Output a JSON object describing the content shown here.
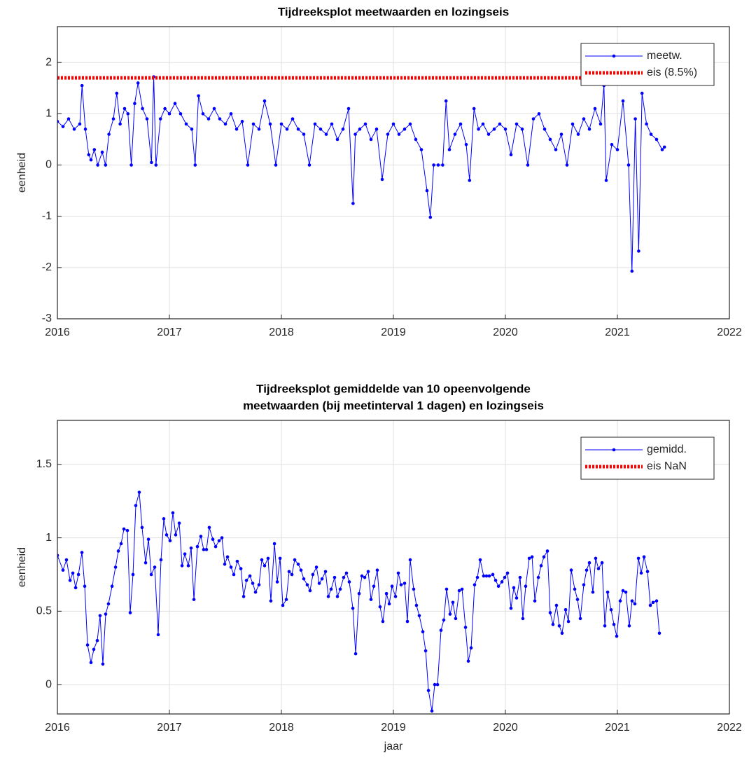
{
  "chart_data": [
    {
      "type": "line",
      "title": [
        "Tijdreeksplot meetwaarden en lozingseis"
      ],
      "ylabel": "eenheid",
      "xlim": [
        2016,
        2022
      ],
      "xticks": [
        2016,
        2017,
        2018,
        2019,
        2020,
        2021,
        2022
      ],
      "ylim": [
        -3,
        2.7
      ],
      "yticks": [
        -3,
        -2,
        -1,
        0,
        1,
        2
      ],
      "grid": true,
      "legend": "northeast",
      "series": [
        {
          "name": "meetw.",
          "color": "#0000ff",
          "linestyle": "solid",
          "marker": "dot",
          "x": [
            2016.0,
            2016.05,
            2016.1,
            2016.15,
            2016.2,
            2016.22,
            2016.25,
            2016.28,
            2016.3,
            2016.33,
            2016.36,
            2016.4,
            2016.43,
            2016.46,
            2016.5,
            2016.53,
            2016.56,
            2016.6,
            2016.63,
            2016.66,
            2016.69,
            2016.72,
            2016.76,
            2016.8,
            2016.84,
            2016.86,
            2016.88,
            2016.92,
            2016.96,
            2017.0,
            2017.05,
            2017.1,
            2017.15,
            2017.2,
            2017.23,
            2017.26,
            2017.3,
            2017.35,
            2017.4,
            2017.45,
            2017.5,
            2017.55,
            2017.6,
            2017.65,
            2017.7,
            2017.75,
            2017.8,
            2017.85,
            2017.9,
            2017.95,
            2018.0,
            2018.05,
            2018.1,
            2018.15,
            2018.2,
            2018.25,
            2018.3,
            2018.35,
            2018.4,
            2018.45,
            2018.5,
            2018.55,
            2018.6,
            2018.64,
            2018.66,
            2018.7,
            2018.75,
            2018.8,
            2018.85,
            2018.9,
            2018.95,
            2019.0,
            2019.05,
            2019.1,
            2019.15,
            2019.2,
            2019.25,
            2019.3,
            2019.33,
            2019.36,
            2019.4,
            2019.44,
            2019.47,
            2019.5,
            2019.55,
            2019.6,
            2019.65,
            2019.68,
            2019.72,
            2019.76,
            2019.8,
            2019.85,
            2019.9,
            2019.95,
            2020.0,
            2020.05,
            2020.1,
            2020.15,
            2020.2,
            2020.25,
            2020.3,
            2020.35,
            2020.4,
            2020.45,
            2020.5,
            2020.55,
            2020.6,
            2020.65,
            2020.7,
            2020.75,
            2020.8,
            2020.85,
            2020.88,
            2020.9,
            2020.95,
            2021.0,
            2021.05,
            2021.1,
            2021.13,
            2021.16,
            2021.19,
            2021.22,
            2021.26,
            2021.3,
            2021.35,
            2021.4,
            2021.42
          ],
          "values": [
            0.85,
            0.75,
            0.9,
            0.7,
            0.8,
            1.55,
            0.7,
            0.2,
            0.1,
            0.3,
            0.0,
            0.25,
            0.0,
            0.6,
            0.9,
            1.4,
            0.8,
            1.1,
            1.0,
            0.0,
            1.2,
            1.6,
            1.1,
            0.9,
            0.05,
            1.72,
            0.0,
            0.9,
            1.1,
            1.0,
            1.2,
            1.0,
            0.8,
            0.7,
            0.0,
            1.35,
            1.0,
            0.9,
            1.1,
            0.9,
            0.8,
            1.0,
            0.7,
            0.85,
            0.0,
            0.8,
            0.7,
            1.25,
            0.8,
            0.0,
            0.8,
            0.7,
            0.9,
            0.7,
            0.6,
            0.0,
            0.8,
            0.7,
            0.6,
            0.8,
            0.5,
            0.7,
            1.1,
            -0.75,
            0.6,
            0.7,
            0.8,
            0.5,
            0.7,
            -0.28,
            0.6,
            0.8,
            0.6,
            0.7,
            0.8,
            0.5,
            0.3,
            -0.5,
            -1.02,
            0.0,
            0.0,
            0.0,
            1.25,
            0.3,
            0.6,
            0.8,
            0.4,
            -0.3,
            1.1,
            0.7,
            0.8,
            0.6,
            0.7,
            0.8,
            0.7,
            0.2,
            0.8,
            0.7,
            0.0,
            0.9,
            1.0,
            0.7,
            0.5,
            0.3,
            0.6,
            0.0,
            0.8,
            0.6,
            0.9,
            0.7,
            1.1,
            0.8,
            1.55,
            -0.3,
            0.4,
            0.3,
            1.25,
            0.0,
            -2.07,
            0.9,
            -1.68,
            1.4,
            0.8,
            0.6,
            0.5,
            0.3,
            0.35
          ]
        },
        {
          "name": "eis (8.5%)",
          "color": "#ff0000",
          "linestyle": "dotted",
          "marker": "none",
          "x": [
            2016,
            2021.42
          ],
          "values": [
            1.7,
            1.7
          ]
        }
      ]
    },
    {
      "type": "line",
      "title": [
        "Tijdreeksplot gemiddelde van 10 opeenvolgende",
        "meetwaarden (bij meetinterval 1 dagen) en lozingseis"
      ],
      "ylabel": "eenheid",
      "xlabel": "jaar",
      "xlim": [
        2016,
        2022
      ],
      "xticks": [
        2016,
        2017,
        2018,
        2019,
        2020,
        2021,
        2022
      ],
      "ylim": [
        -0.2,
        1.8
      ],
      "yticks": [
        0,
        0.5,
        1,
        1.5
      ],
      "grid": true,
      "legend": "northeast",
      "series": [
        {
          "name": "gemidd.",
          "color": "#0000ff",
          "linestyle": "solid",
          "marker": "dot",
          "x": [
            2016.0,
            2016.05,
            2016.081,
            2016.113,
            2016.138,
            2016.163,
            2016.188,
            2016.219,
            2016.244,
            2016.269,
            2016.3,
            2016.325,
            2016.356,
            2016.381,
            2016.406,
            2016.431,
            2016.456,
            2016.488,
            2016.519,
            2016.544,
            2016.569,
            2016.594,
            2016.625,
            2016.65,
            2016.675,
            2016.7,
            2016.731,
            2016.756,
            2016.788,
            2016.813,
            2016.838,
            2016.869,
            2016.9,
            2016.925,
            2016.95,
            2016.975,
            2017.006,
            2017.031,
            2017.056,
            2017.088,
            2017.113,
            2017.138,
            2017.169,
            2017.194,
            2017.219,
            2017.25,
            2017.281,
            2017.306,
            2017.331,
            2017.356,
            2017.388,
            2017.413,
            2017.444,
            2017.469,
            2017.494,
            2017.519,
            2017.55,
            2017.575,
            2017.606,
            2017.638,
            2017.663,
            2017.688,
            2017.719,
            2017.744,
            2017.769,
            2017.8,
            2017.825,
            2017.85,
            2017.881,
            2017.906,
            2017.938,
            2017.963,
            2017.988,
            2018.013,
            2018.044,
            2018.069,
            2018.094,
            2018.119,
            2018.15,
            2018.175,
            2018.2,
            2018.231,
            2018.256,
            2018.281,
            2018.313,
            2018.338,
            2018.363,
            2018.394,
            2018.419,
            2018.444,
            2018.475,
            2018.5,
            2018.525,
            2018.556,
            2018.581,
            2018.606,
            2018.638,
            2018.663,
            2018.694,
            2018.719,
            2018.744,
            2018.775,
            2018.8,
            2018.825,
            2018.856,
            2018.881,
            2018.906,
            2018.938,
            2018.963,
            2018.988,
            2019.019,
            2019.044,
            2019.069,
            2019.1,
            2019.125,
            2019.15,
            2019.181,
            2019.206,
            2019.231,
            2019.263,
            2019.288,
            2019.313,
            2019.344,
            2019.369,
            2019.394,
            2019.425,
            2019.45,
            2019.475,
            2019.506,
            2019.531,
            2019.556,
            2019.588,
            2019.613,
            2019.644,
            2019.669,
            2019.694,
            2019.725,
            2019.75,
            2019.775,
            2019.806,
            2019.831,
            2019.856,
            2019.888,
            2019.913,
            2019.938,
            2019.969,
            2019.994,
            2020.019,
            2020.05,
            2020.075,
            2020.1,
            2020.131,
            2020.156,
            2020.181,
            2020.213,
            2020.238,
            2020.263,
            2020.294,
            2020.319,
            2020.344,
            2020.375,
            2020.4,
            2020.425,
            2020.456,
            2020.481,
            2020.506,
            2020.538,
            2020.563,
            2020.588,
            2020.619,
            2020.644,
            2020.669,
            2020.7,
            2020.725,
            2020.75,
            2020.781,
            2020.806,
            2020.831,
            2020.863,
            2020.888,
            2020.913,
            2020.944,
            2020.969,
            2020.994,
            2021.025,
            2021.05,
            2021.075,
            2021.106,
            2021.131,
            2021.156,
            2021.188,
            2021.213,
            2021.238,
            2021.269,
            2021.294,
            2021.319,
            2021.35,
            2021.375
          ],
          "values": [
            0.88,
            0.78,
            0.85,
            0.71,
            0.76,
            0.66,
            0.75,
            0.9,
            0.67,
            0.27,
            0.15,
            0.24,
            0.3,
            0.47,
            0.14,
            0.48,
            0.55,
            0.67,
            0.8,
            0.91,
            0.96,
            1.06,
            1.05,
            0.49,
            0.75,
            1.22,
            1.31,
            1.07,
            0.83,
            0.99,
            0.75,
            0.8,
            0.34,
            0.85,
            1.13,
            1.02,
            0.98,
            1.17,
            1.02,
            1.1,
            0.81,
            0.89,
            0.81,
            0.93,
            0.58,
            0.94,
            1.01,
            0.92,
            0.92,
            1.07,
            0.99,
            0.94,
            0.98,
            1.0,
            0.82,
            0.87,
            0.8,
            0.75,
            0.84,
            0.79,
            0.6,
            0.71,
            0.74,
            0.69,
            0.63,
            0.68,
            0.85,
            0.81,
            0.86,
            0.57,
            0.96,
            0.7,
            0.86,
            0.54,
            0.58,
            0.77,
            0.75,
            0.85,
            0.82,
            0.78,
            0.72,
            0.68,
            0.64,
            0.75,
            0.8,
            0.69,
            0.72,
            0.77,
            0.6,
            0.65,
            0.73,
            0.6,
            0.65,
            0.73,
            0.76,
            0.7,
            0.52,
            0.21,
            0.62,
            0.74,
            0.73,
            0.77,
            0.58,
            0.67,
            0.78,
            0.53,
            0.43,
            0.62,
            0.55,
            0.67,
            0.6,
            0.76,
            0.68,
            0.69,
            0.43,
            0.85,
            0.65,
            0.54,
            0.47,
            0.36,
            0.23,
            -0.04,
            -0.18,
            0.0,
            0.0,
            0.37,
            0.44,
            0.65,
            0.48,
            0.56,
            0.45,
            0.64,
            0.65,
            0.39,
            0.16,
            0.25,
            0.68,
            0.73,
            0.85,
            0.74,
            0.74,
            0.74,
            0.75,
            0.71,
            0.67,
            0.7,
            0.73,
            0.76,
            0.52,
            0.66,
            0.59,
            0.73,
            0.45,
            0.67,
            0.86,
            0.87,
            0.57,
            0.73,
            0.81,
            0.87,
            0.91,
            0.49,
            0.41,
            0.54,
            0.4,
            0.35,
            0.51,
            0.43,
            0.78,
            0.65,
            0.58,
            0.45,
            0.68,
            0.78,
            0.83,
            0.63,
            0.86,
            0.79,
            0.83,
            0.4,
            0.63,
            0.51,
            0.41,
            0.33,
            0.57,
            0.64,
            0.63,
            0.4,
            0.57,
            0.55,
            0.86,
            0.76,
            0.87,
            0.77,
            0.54,
            0.56,
            0.57,
            0.35
          ]
        },
        {
          "name": "eis NaN",
          "color": "#ff0000",
          "linestyle": "dotted",
          "marker": "none",
          "x": [
            2016,
            2021.42
          ],
          "values": [
            null,
            null
          ]
        }
      ]
    }
  ]
}
